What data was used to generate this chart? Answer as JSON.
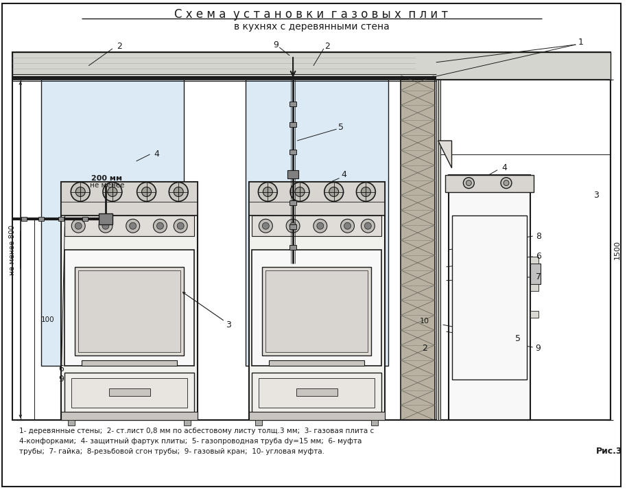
{
  "title_line1": "С х е м а  у с т а н о в к и  г а з о в ы х  п л и т",
  "title_line2": "в кухнях с деревянными стена",
  "caption_line1": "1- деревянные стены;  2- ст.лист 0,8 мм по асбестовому листу толщ.3 мм;  3- газовая плита с",
  "caption_line2": "4-конфорками;  4- защитный фартук плиты;  5- газопроводная труба dy=15 мм;  6- муфта",
  "caption_line3": "трубы;  7- гайка;  8-резьбовой сгон трубы;  9- газовый кран;  10- угловая муфта.",
  "fig_label": "Рис.3",
  "bg_color": "#ffffff",
  "line_color": "#1a1a1a",
  "wall_hatch_color": "#888888",
  "light_blue": "#dceaf5",
  "light_gray": "#e8e8e8",
  "medium_gray": "#c0c0c0",
  "dark_gray": "#909090"
}
